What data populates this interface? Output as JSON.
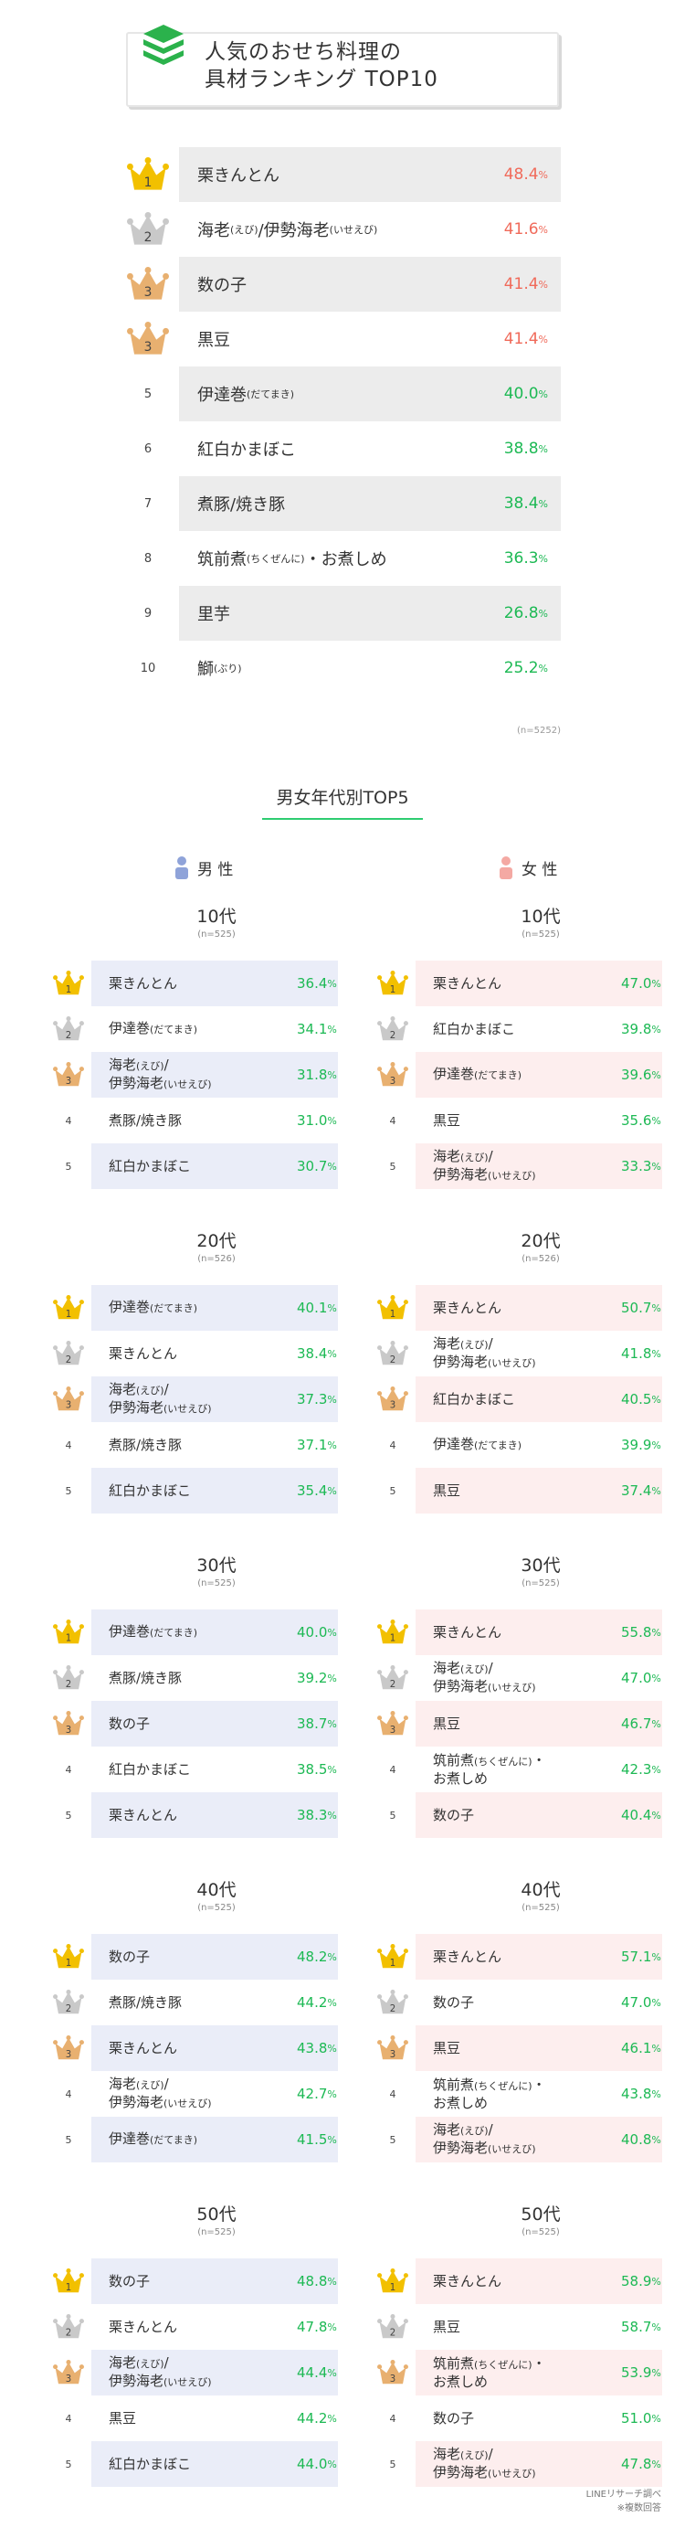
{
  "header": {
    "title_line1": "人気のおせち料理の",
    "title_line2": "具材ランキング TOP10"
  },
  "top10": [
    {
      "rank": "1",
      "name": "栗きんとん",
      "value": "48.4",
      "color": "red"
    },
    {
      "rank": "2",
      "name": "海老(えび)/伊勢海老(いせえび)",
      "value": "41.6",
      "color": "red"
    },
    {
      "rank": "3",
      "name": "数の子",
      "value": "41.4",
      "color": "red"
    },
    {
      "rank": "3",
      "name": "黒豆",
      "value": "41.4",
      "color": "red"
    },
    {
      "rank": "5",
      "name": "伊達巻(だてまき)",
      "value": "40.0",
      "color": "green"
    },
    {
      "rank": "6",
      "name": "紅白かまぼこ",
      "value": "38.8",
      "color": "green"
    },
    {
      "rank": "7",
      "name": "煮豚/焼き豚",
      "value": "38.4",
      "color": "green"
    },
    {
      "rank": "8",
      "name": "筑前煮(ちくぜんに)・お煮しめ",
      "value": "36.3",
      "color": "green"
    },
    {
      "rank": "9",
      "name": "里芋",
      "value": "26.8",
      "color": "green"
    },
    {
      "rank": "10",
      "name": "鰤(ぶり)",
      "value": "25.2",
      "color": "green"
    }
  ],
  "top10_sample": "(n=5252)",
  "section_title": "男女年代別TOP5",
  "male_label": "男 性",
  "female_label": "女 性",
  "pct_unit": "%",
  "colors": {
    "red": "#f06a5a",
    "green": "#1db954",
    "male_bg": "#eaedf8",
    "female_bg": "#fdeeee",
    "gray_bg": "#ececec",
    "gold": "#f2c000",
    "silver": "#c9c9c9",
    "bronze": "#e8b070",
    "accent_line": "#2ecc71",
    "header_icon": "#2bb24c"
  },
  "chart_data": {
    "type": "table",
    "title": "人気のおせち料理の具材ランキング TOP10",
    "unit": "%",
    "overall": {
      "sample": "n=5252",
      "categories": [
        "栗きんとん",
        "海老(えび)/伊勢海老(いせえび)",
        "数の子",
        "黒豆",
        "伊達巻(だてまき)",
        "紅白かまぼこ",
        "煮豚/焼き豚",
        "筑前煮(ちくぜんに)・お煮しめ",
        "里芋",
        "鰤(ぶり)"
      ],
      "values": [
        48.4,
        41.6,
        41.4,
        41.4,
        40.0,
        38.8,
        38.4,
        36.3,
        26.8,
        25.2
      ]
    },
    "by_gender_age_title": "男女年代別TOP5",
    "groups": [
      {
        "age": "10代",
        "male": {
          "n": "(n=525)",
          "rows": [
            {
              "rank": "1",
              "name": "栗きんとん",
              "value": "36.4"
            },
            {
              "rank": "2",
              "name": "伊達巻(だてまき)",
              "value": "34.1"
            },
            {
              "rank": "3",
              "name": "海老(えび)/",
              "name2": "伊勢海老(いせえび)",
              "value": "31.8"
            },
            {
              "rank": "4",
              "name": "煮豚/焼き豚",
              "value": "31.0"
            },
            {
              "rank": "5",
              "name": "紅白かまぼこ",
              "value": "30.7"
            }
          ]
        },
        "female": {
          "n": "(n=525)",
          "rows": [
            {
              "rank": "1",
              "name": "栗きんとん",
              "value": "47.0"
            },
            {
              "rank": "2",
              "name": "紅白かまぼこ",
              "value": "39.8"
            },
            {
              "rank": "3",
              "name": "伊達巻(だてまき)",
              "value": "39.6"
            },
            {
              "rank": "4",
              "name": "黒豆",
              "value": "35.6"
            },
            {
              "rank": "5",
              "name": "海老(えび)/",
              "name2": "伊勢海老(いせえび)",
              "value": "33.3"
            }
          ]
        }
      },
      {
        "age": "20代",
        "male": {
          "n": "(n=526)",
          "rows": [
            {
              "rank": "1",
              "name": "伊達巻(だてまき)",
              "value": "40.1"
            },
            {
              "rank": "2",
              "name": "栗きんとん",
              "value": "38.4"
            },
            {
              "rank": "3",
              "name": "海老(えび)/",
              "name2": "伊勢海老(いせえび)",
              "value": "37.3"
            },
            {
              "rank": "4",
              "name": "煮豚/焼き豚",
              "value": "37.1"
            },
            {
              "rank": "5",
              "name": "紅白かまぼこ",
              "value": "35.4"
            }
          ]
        },
        "female": {
          "n": "(n=526)",
          "rows": [
            {
              "rank": "1",
              "name": "栗きんとん",
              "value": "50.7"
            },
            {
              "rank": "2",
              "name": "海老(えび)/",
              "name2": "伊勢海老(いせえび)",
              "value": "41.8"
            },
            {
              "rank": "3",
              "name": "紅白かまぼこ",
              "value": "40.5"
            },
            {
              "rank": "4",
              "name": "伊達巻(だてまき)",
              "value": "39.9"
            },
            {
              "rank": "5",
              "name": "黒豆",
              "value": "37.4"
            }
          ]
        }
      },
      {
        "age": "30代",
        "male": {
          "n": "(n=525)",
          "rows": [
            {
              "rank": "1",
              "name": "伊達巻(だてまき)",
              "value": "40.0"
            },
            {
              "rank": "2",
              "name": "煮豚/焼き豚",
              "value": "39.2"
            },
            {
              "rank": "3",
              "name": "数の子",
              "value": "38.7"
            },
            {
              "rank": "4",
              "name": "紅白かまぼこ",
              "value": "38.5"
            },
            {
              "rank": "5",
              "name": "栗きんとん",
              "value": "38.3"
            }
          ]
        },
        "female": {
          "n": "(n=525)",
          "rows": [
            {
              "rank": "1",
              "name": "栗きんとん",
              "value": "55.8"
            },
            {
              "rank": "2",
              "name": "海老(えび)/",
              "name2": "伊勢海老(いせえび)",
              "value": "47.0"
            },
            {
              "rank": "3",
              "name": "黒豆",
              "value": "46.7"
            },
            {
              "rank": "4",
              "name": "筑前煮(ちくぜんに)・",
              "name2": "お煮しめ",
              "value": "42.3"
            },
            {
              "rank": "5",
              "name": "数の子",
              "value": "40.4"
            }
          ]
        }
      },
      {
        "age": "40代",
        "male": {
          "n": "(n=525)",
          "rows": [
            {
              "rank": "1",
              "name": "数の子",
              "value": "48.2"
            },
            {
              "rank": "2",
              "name": "煮豚/焼き豚",
              "value": "44.2"
            },
            {
              "rank": "3",
              "name": "栗きんとん",
              "value": "43.8"
            },
            {
              "rank": "4",
              "name": "海老(えび)/",
              "name2": "伊勢海老(いせえび)",
              "value": "42.7"
            },
            {
              "rank": "5",
              "name": "伊達巻(だてまき)",
              "value": "41.5"
            }
          ]
        },
        "female": {
          "n": "(n=525)",
          "rows": [
            {
              "rank": "1",
              "name": "栗きんとん",
              "value": "57.1"
            },
            {
              "rank": "2",
              "name": "数の子",
              "value": "47.0"
            },
            {
              "rank": "3",
              "name": "黒豆",
              "value": "46.1"
            },
            {
              "rank": "4",
              "name": "筑前煮(ちくぜんに)・",
              "name2": "お煮しめ",
              "value": "43.8"
            },
            {
              "rank": "5",
              "name": "海老(えび)/",
              "name2": "伊勢海老(いせえび)",
              "value": "40.8"
            }
          ]
        }
      },
      {
        "age": "50代",
        "male": {
          "n": "(n=525)",
          "rows": [
            {
              "rank": "1",
              "name": "数の子",
              "value": "48.8"
            },
            {
              "rank": "2",
              "name": "栗きんとん",
              "value": "47.8"
            },
            {
              "rank": "3",
              "name": "海老(えび)/",
              "name2": "伊勢海老(いせえび)",
              "value": "44.4"
            },
            {
              "rank": "4",
              "name": "黒豆",
              "value": "44.2"
            },
            {
              "rank": "5",
              "name": "紅白かまぼこ",
              "value": "44.0"
            }
          ]
        },
        "female": {
          "n": "(n=525)",
          "rows": [
            {
              "rank": "1",
              "name": "栗きんとん",
              "value": "58.9"
            },
            {
              "rank": "2",
              "name": "黒豆",
              "value": "58.7"
            },
            {
              "rank": "3",
              "name": "筑前煮(ちくぜんに)・",
              "name2": "お煮しめ",
              "value": "53.9"
            },
            {
              "rank": "4",
              "name": "数の子",
              "value": "51.0"
            },
            {
              "rank": "5",
              "name": "海老(えび)/",
              "name2": "伊勢海老(いせえび)",
              "value": "47.8"
            }
          ]
        }
      }
    ]
  },
  "footer": {
    "source": "LINEリサーチ調べ",
    "note": "※複数回答"
  }
}
